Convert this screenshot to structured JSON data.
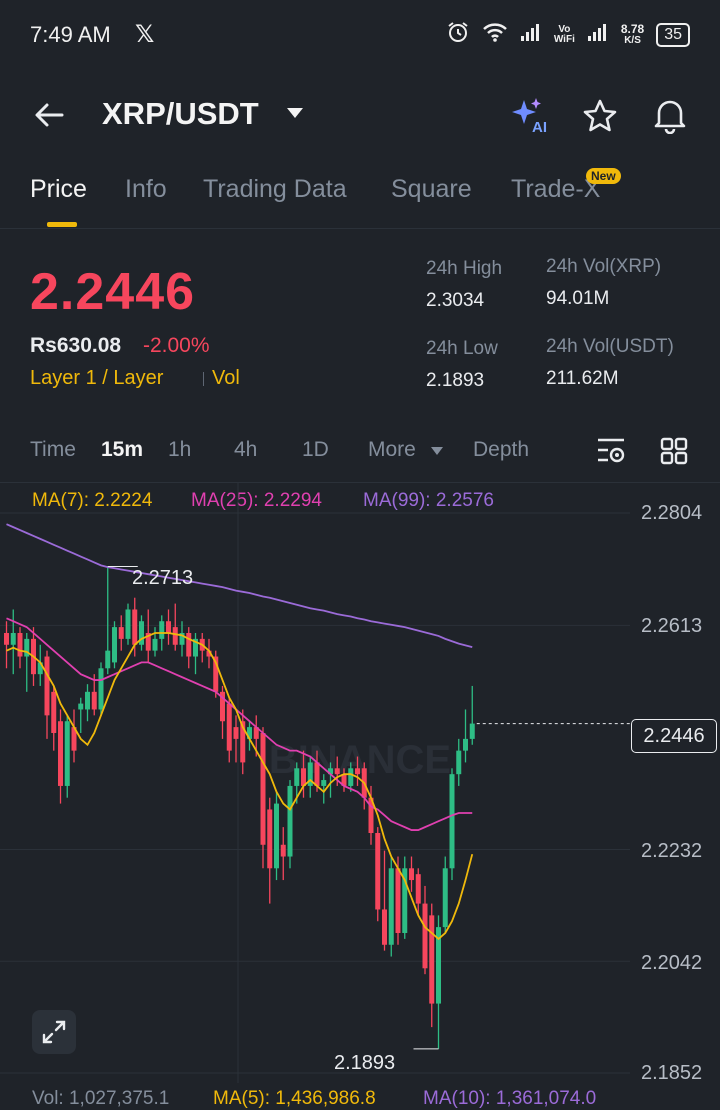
{
  "status_bar": {
    "time": "7:49 AM",
    "x_icon": "x-logo-icon",
    "network_speed_value": "8.78",
    "network_speed_unit": "K/S",
    "vo_label": "Vo",
    "wifi_label": "WiFi",
    "battery": "35"
  },
  "header": {
    "pair": "XRP/USDT",
    "icons": [
      "back-arrow-icon",
      "ai-sparkle-icon",
      "star-icon",
      "bell-icon"
    ],
    "ai_label": "AI"
  },
  "tabs": {
    "items": [
      "Price",
      "Info",
      "Trading Data",
      "Square",
      "Trade-X"
    ],
    "active": "Price",
    "new_badge": "New"
  },
  "price": {
    "last": "2.2446",
    "inr": "Rs630.08",
    "change": "-2.00%",
    "tag_primary": "Layer 1 / Layer",
    "tag_secondary": "Vol"
  },
  "stats": {
    "high_label": "24h High",
    "high_value": "2.3034",
    "low_label": "24h Low",
    "low_value": "2.1893",
    "vol_xrp_label": "24h Vol(XRP)",
    "vol_xrp_value": "94.01M",
    "vol_usdt_label": "24h Vol(USDT)",
    "vol_usdt_value": "211.62M"
  },
  "timeframes": {
    "items": [
      "Time",
      "15m",
      "1h",
      "4h",
      "1D",
      "More",
      "Depth"
    ],
    "active": "15m"
  },
  "ma_legend": {
    "ma7": "MA(7): 2.2224",
    "ma25": "MA(25): 2.2294",
    "ma99": "MA(99): 2.2576"
  },
  "chart_labels": {
    "watermark": "BINANCE",
    "high_annotation": "2.2713",
    "low_annotation": "2.1893",
    "current_price": "2.2446"
  },
  "volume_legend": {
    "vol": "Vol: 1,027,375.1",
    "ma5": "MA(5): 1,436,986.8",
    "ma10": "MA(10): 1,361,074.0"
  },
  "colors": {
    "up": "#2ebd85",
    "down": "#f6465d",
    "ma7": "#f0b90b",
    "ma25": "#e040b0",
    "ma99": "#9b6bd8",
    "accent": "#f0b90b"
  },
  "chart_data": {
    "type": "candlestick",
    "y_ticks": [
      "2.2804",
      "2.2613",
      "2.2232",
      "2.2042",
      "2.1852"
    ],
    "ylim": [
      2.1852,
      2.2804
    ],
    "candles": [
      {
        "o": 2.26,
        "h": 2.262,
        "l": 2.254,
        "c": 2.258
      },
      {
        "o": 2.258,
        "h": 2.264,
        "l": 2.253,
        "c": 2.26
      },
      {
        "o": 2.26,
        "h": 2.261,
        "l": 2.254,
        "c": 2.256
      },
      {
        "o": 2.256,
        "h": 2.26,
        "l": 2.25,
        "c": 2.259
      },
      {
        "o": 2.259,
        "h": 2.261,
        "l": 2.251,
        "c": 2.253
      },
      {
        "o": 2.253,
        "h": 2.258,
        "l": 2.251,
        "c": 2.255
      },
      {
        "o": 2.256,
        "h": 2.257,
        "l": 2.242,
        "c": 2.246
      },
      {
        "o": 2.25,
        "h": 2.251,
        "l": 2.24,
        "c": 2.243
      },
      {
        "o": 2.245,
        "h": 2.247,
        "l": 2.231,
        "c": 2.234
      },
      {
        "o": 2.234,
        "h": 2.246,
        "l": 2.232,
        "c": 2.245
      },
      {
        "o": 2.244,
        "h": 2.247,
        "l": 2.238,
        "c": 2.24
      },
      {
        "o": 2.247,
        "h": 2.249,
        "l": 2.243,
        "c": 2.248
      },
      {
        "o": 2.247,
        "h": 2.2513,
        "l": 2.245,
        "c": 2.25
      },
      {
        "o": 2.25,
        "h": 2.253,
        "l": 2.246,
        "c": 2.247
      },
      {
        "o": 2.247,
        "h": 2.255,
        "l": 2.246,
        "c": 2.254
      },
      {
        "o": 2.254,
        "h": 2.2713,
        "l": 2.253,
        "c": 2.257
      },
      {
        "o": 2.255,
        "h": 2.262,
        "l": 2.254,
        "c": 2.261
      },
      {
        "o": 2.261,
        "h": 2.263,
        "l": 2.257,
        "c": 2.259
      },
      {
        "o": 2.259,
        "h": 2.265,
        "l": 2.258,
        "c": 2.264
      },
      {
        "o": 2.264,
        "h": 2.266,
        "l": 2.256,
        "c": 2.258
      },
      {
        "o": 2.258,
        "h": 2.263,
        "l": 2.257,
        "c": 2.262
      },
      {
        "o": 2.26,
        "h": 2.264,
        "l": 2.255,
        "c": 2.257
      },
      {
        "o": 2.257,
        "h": 2.261,
        "l": 2.256,
        "c": 2.259
      },
      {
        "o": 2.259,
        "h": 2.263,
        "l": 2.257,
        "c": 2.262
      },
      {
        "o": 2.262,
        "h": 2.264,
        "l": 2.258,
        "c": 2.26
      },
      {
        "o": 2.261,
        "h": 2.265,
        "l": 2.257,
        "c": 2.258
      },
      {
        "o": 2.258,
        "h": 2.262,
        "l": 2.256,
        "c": 2.26
      },
      {
        "o": 2.26,
        "h": 2.261,
        "l": 2.254,
        "c": 2.256
      },
      {
        "o": 2.256,
        "h": 2.26,
        "l": 2.253,
        "c": 2.259
      },
      {
        "o": 2.259,
        "h": 2.26,
        "l": 2.255,
        "c": 2.257
      },
      {
        "o": 2.257,
        "h": 2.259,
        "l": 2.254,
        "c": 2.256
      },
      {
        "o": 2.256,
        "h": 2.257,
        "l": 2.249,
        "c": 2.25
      },
      {
        "o": 2.25,
        "h": 2.251,
        "l": 2.242,
        "c": 2.245
      },
      {
        "o": 2.248,
        "h": 2.249,
        "l": 2.238,
        "c": 2.24
      },
      {
        "o": 2.244,
        "h": 2.246,
        "l": 2.238,
        "c": 2.242
      },
      {
        "o": 2.245,
        "h": 2.247,
        "l": 2.236,
        "c": 2.238
      },
      {
        "o": 2.242,
        "h": 2.245,
        "l": 2.24,
        "c": 2.244
      },
      {
        "o": 2.244,
        "h": 2.246,
        "l": 2.239,
        "c": 2.242
      },
      {
        "o": 2.243,
        "h": 2.244,
        "l": 2.22,
        "c": 2.224
      },
      {
        "o": 2.23,
        "h": 2.232,
        "l": 2.214,
        "c": 2.22
      },
      {
        "o": 2.22,
        "h": 2.233,
        "l": 2.218,
        "c": 2.231
      },
      {
        "o": 2.224,
        "h": 2.227,
        "l": 2.218,
        "c": 2.222
      },
      {
        "o": 2.222,
        "h": 2.235,
        "l": 2.22,
        "c": 2.234
      },
      {
        "o": 2.234,
        "h": 2.238,
        "l": 2.231,
        "c": 2.237
      },
      {
        "o": 2.237,
        "h": 2.24,
        "l": 2.232,
        "c": 2.234
      },
      {
        "o": 2.234,
        "h": 2.239,
        "l": 2.232,
        "c": 2.238
      },
      {
        "o": 2.238,
        "h": 2.24,
        "l": 2.233,
        "c": 2.234
      },
      {
        "o": 2.234,
        "h": 2.236,
        "l": 2.231,
        "c": 2.235
      },
      {
        "o": 2.236,
        "h": 2.238,
        "l": 2.232,
        "c": 2.237
      },
      {
        "o": 2.237,
        "h": 2.239,
        "l": 2.234,
        "c": 2.236
      },
      {
        "o": 2.236,
        "h": 2.237,
        "l": 2.233,
        "c": 2.234
      },
      {
        "o": 2.234,
        "h": 2.238,
        "l": 2.233,
        "c": 2.237
      },
      {
        "o": 2.237,
        "h": 2.239,
        "l": 2.234,
        "c": 2.236
      },
      {
        "o": 2.237,
        "h": 2.238,
        "l": 2.23,
        "c": 2.232
      },
      {
        "o": 2.232,
        "h": 2.234,
        "l": 2.224,
        "c": 2.226
      },
      {
        "o": 2.226,
        "h": 2.227,
        "l": 2.211,
        "c": 2.213
      },
      {
        "o": 2.213,
        "h": 2.223,
        "l": 2.206,
        "c": 2.207
      },
      {
        "o": 2.207,
        "h": 2.222,
        "l": 2.205,
        "c": 2.22
      },
      {
        "o": 2.22,
        "h": 2.222,
        "l": 2.207,
        "c": 2.209
      },
      {
        "o": 2.209,
        "h": 2.222,
        "l": 2.208,
        "c": 2.22
      },
      {
        "o": 2.22,
        "h": 2.222,
        "l": 2.216,
        "c": 2.218
      },
      {
        "o": 2.219,
        "h": 2.22,
        "l": 2.212,
        "c": 2.214
      },
      {
        "o": 2.214,
        "h": 2.217,
        "l": 2.202,
        "c": 2.203
      },
      {
        "o": 2.212,
        "h": 2.214,
        "l": 2.193,
        "c": 2.197
      },
      {
        "o": 2.197,
        "h": 2.212,
        "l": 2.1893,
        "c": 2.21
      },
      {
        "o": 2.21,
        "h": 2.222,
        "l": 2.209,
        "c": 2.22
      },
      {
        "o": 2.22,
        "h": 2.237,
        "l": 2.218,
        "c": 2.236
      },
      {
        "o": 2.236,
        "h": 2.242,
        "l": 2.234,
        "c": 2.24
      },
      {
        "o": 2.24,
        "h": 2.247,
        "l": 2.238,
        "c": 2.242
      },
      {
        "o": 2.242,
        "h": 2.251,
        "l": 2.241,
        "c": 2.2446
      }
    ],
    "ma7_values": [
      2.257,
      2.2575,
      2.257,
      2.2568,
      2.256,
      2.255,
      2.253,
      2.251,
      2.248,
      2.246,
      2.244,
      2.242,
      2.241,
      2.243,
      2.246,
      2.249,
      2.252,
      2.254,
      2.256,
      2.258,
      2.259,
      2.2595,
      2.26,
      2.26,
      2.26,
      2.2598,
      2.2596,
      2.259,
      2.2585,
      2.258,
      2.257,
      2.255,
      2.252,
      2.249,
      2.247,
      2.244,
      2.242,
      2.24,
      2.238,
      2.236,
      2.233,
      2.231,
      2.23,
      2.232,
      2.234,
      2.235,
      2.234,
      2.233,
      2.2345,
      2.2355,
      2.236,
      2.236,
      2.2355,
      2.2345,
      2.232,
      2.229,
      2.225,
      2.222,
      2.22,
      2.218,
      2.215,
      2.212,
      2.21,
      2.209,
      2.208,
      2.209,
      2.211,
      2.214,
      2.218,
      2.2224
    ],
    "ma25_values": [
      2.2625,
      2.262,
      2.2615,
      2.261,
      2.26,
      2.259,
      2.258,
      2.257,
      2.256,
      2.255,
      2.254,
      2.253,
      2.2525,
      2.252,
      2.252,
      2.2525,
      2.253,
      2.2535,
      2.254,
      2.2545,
      2.255,
      2.255,
      2.2545,
      2.254,
      2.2535,
      2.253,
      2.2525,
      2.252,
      2.2515,
      2.251,
      2.2505,
      2.25,
      2.249,
      2.248,
      2.247,
      2.246,
      2.245,
      2.244,
      2.243,
      2.242,
      2.241,
      2.2405,
      2.24,
      2.24,
      2.2395,
      2.239,
      2.238,
      2.237,
      2.236,
      2.235,
      2.234,
      2.2335,
      2.233,
      2.232,
      2.2305,
      2.23,
      2.229,
      2.228,
      2.2275,
      2.227,
      2.2265,
      2.2265,
      2.227,
      2.2275,
      2.228,
      2.2285,
      2.229,
      2.2294,
      2.2294,
      2.2294
    ],
    "ma99_values": [
      2.2785,
      2.278,
      2.2775,
      2.277,
      2.2765,
      2.276,
      2.2755,
      2.275,
      2.2745,
      2.274,
      2.2735,
      2.273,
      2.2725,
      2.272,
      2.2715,
      2.2712,
      2.271,
      2.2708,
      2.2706,
      2.2704,
      2.2702,
      2.27,
      2.2698,
      2.2696,
      2.2694,
      2.2692,
      2.269,
      2.2688,
      2.2686,
      2.2684,
      2.2682,
      2.268,
      2.2678,
      2.2675,
      2.2672,
      2.267,
      2.2668,
      2.2665,
      2.2662,
      2.266,
      2.2657,
      2.2654,
      2.2651,
      2.2648,
      2.2645,
      2.2642,
      2.264,
      2.2638,
      2.2635,
      2.2632,
      2.263,
      2.2628,
      2.2625,
      2.2623,
      2.262,
      2.2618,
      2.2616,
      2.2614,
      2.2612,
      2.261,
      2.2607,
      2.2604,
      2.2601,
      2.2598,
      2.2595,
      2.259,
      2.2586,
      2.2582,
      2.2579,
      2.2576
    ]
  }
}
